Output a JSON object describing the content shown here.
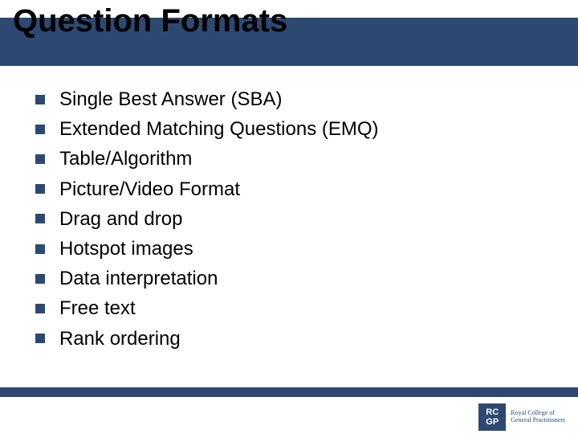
{
  "title": "Question Formats",
  "bullet_color": "#2d4972",
  "band_color": "#2d4972",
  "background_color": "#ffffff",
  "title_fontsize": 40,
  "item_fontsize": 24,
  "items": [
    "Single Best Answer (SBA)",
    "Extended Matching Questions (EMQ)",
    "Table/Algorithm",
    "Picture/Video Format",
    "Drag and drop",
    "Hotspot images",
    "Data interpretation",
    "Free text",
    "Rank ordering"
  ],
  "logo": {
    "box_line1": "RC",
    "box_line2": "GP",
    "text_line1": "Royal College of",
    "text_line2": "General Practitioners"
  }
}
